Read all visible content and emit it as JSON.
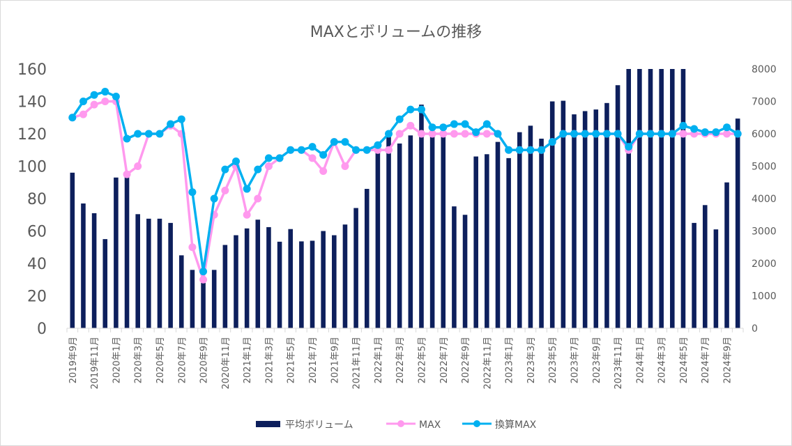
{
  "chart_data": {
    "type": "bar",
    "title": "MAXとボリュームの推移",
    "x": [
      "2019年9月",
      "2019年10月",
      "2019年11月",
      "2019年12月",
      "2020年1月",
      "2020年2月",
      "2020年3月",
      "2020年4月",
      "2020年5月",
      "2020年6月",
      "2020年7月",
      "2020年8月",
      "2020年9月",
      "2020年10月",
      "2020年11月",
      "2020年12月",
      "2021年1月",
      "2021年2月",
      "2021年3月",
      "2021年4月",
      "2021年5月",
      "2021年6月",
      "2021年7月",
      "2021年8月",
      "2021年9月",
      "2021年10月",
      "2021年11月",
      "2021年12月",
      "2022年1月",
      "2022年2月",
      "2022年3月",
      "2022年4月",
      "2022年5月",
      "2022年6月",
      "2022年7月",
      "2022年8月",
      "2022年9月",
      "2022年10月",
      "2022年11月",
      "2022年12月",
      "2023年1月",
      "2023年2月",
      "2023年3月",
      "2023年4月",
      "2023年5月",
      "2023年6月",
      "2023年7月",
      "2023年8月",
      "2023年9月",
      "2023年10月",
      "2023年11月",
      "2023年12月",
      "2024年1月",
      "2024年2月",
      "2024年3月",
      "2024年4月",
      "2024年5月",
      "2024年6月",
      "2024年7月",
      "2024年8月",
      "2024年9月",
      "2024年10月"
    ],
    "x_tick_labels": [
      "2019年9月",
      "2019年11月",
      "2020年1月",
      "2020年3月",
      "2020年5月",
      "2020年7月",
      "2020年9月",
      "2020年11月",
      "2021年1月",
      "2021年3月",
      "2021年5月",
      "2021年7月",
      "2021年9月",
      "2021年11月",
      "2022年1月",
      "2022年3月",
      "2022年5月",
      "2022年7月",
      "2022年9月",
      "2022年11月",
      "2023年1月",
      "2023年3月",
      "2023年5月",
      "2023年7月",
      "2023年9月",
      "2023年11月",
      "2024年1月",
      "2024年3月",
      "2024年5月",
      "2024年7月",
      "2024年9月"
    ],
    "y_left": {
      "ylim": [
        0,
        160
      ],
      "ticks": [
        "0",
        "20",
        "40",
        "60",
        "80",
        "100",
        "120",
        "140",
        "160"
      ]
    },
    "y_right": {
      "ylim": [
        0,
        8000
      ],
      "ticks": [
        "0",
        "1000",
        "2000",
        "3000",
        "4000",
        "5000",
        "6000",
        "7000",
        "8000"
      ]
    },
    "series": [
      {
        "name": "平均ボリューム",
        "type": "bar",
        "axis": "right",
        "color": "#0d1f5c",
        "values": [
          4800,
          3850,
          3550,
          2750,
          4650,
          4700,
          3520,
          3380,
          3380,
          3250,
          2250,
          1800,
          1400,
          1800,
          2570,
          2870,
          3080,
          3350,
          3120,
          2670,
          3060,
          2680,
          2700,
          3000,
          2870,
          3200,
          3710,
          4300,
          5500,
          5900,
          5700,
          5950,
          6900,
          6100,
          6050,
          3760,
          3500,
          5300,
          5370,
          5750,
          5250,
          6050,
          6250,
          5850,
          7000,
          7020,
          6600,
          6700,
          6750,
          6950,
          7500,
          8000,
          8000,
          8000,
          8000,
          8000,
          8000,
          3250,
          3800,
          3050,
          4500,
          6470
        ]
      },
      {
        "name": "MAX",
        "type": "line",
        "axis": "left",
        "color": "#ff99ee",
        "values": [
          130,
          132,
          138,
          140,
          140,
          95,
          100,
          120,
          120,
          125,
          120,
          50,
          30,
          70,
          85,
          100,
          70,
          80,
          100,
          105,
          110,
          110,
          105,
          97,
          115,
          100,
          110,
          110,
          110,
          110,
          120,
          125,
          120,
          120,
          120,
          120,
          120,
          120,
          120,
          120,
          110,
          110,
          110,
          110,
          115,
          120,
          120,
          120,
          120,
          120,
          120,
          110,
          120,
          120,
          120,
          120,
          120,
          120,
          120,
          120,
          120,
          120
        ]
      },
      {
        "name": "換算MAX",
        "type": "line",
        "axis": "left",
        "color": "#00b0f0",
        "values": [
          130,
          140,
          144,
          146,
          143,
          117,
          120,
          120,
          120,
          126,
          129,
          84,
          35,
          80,
          98,
          103,
          86,
          98,
          105,
          105,
          110,
          110,
          112,
          107,
          115,
          115,
          110,
          110,
          113,
          120,
          129,
          135,
          135,
          124,
          124,
          126,
          126,
          121,
          126,
          120,
          110,
          110,
          110,
          110,
          115,
          120,
          120,
          120,
          120,
          120,
          120,
          112,
          120,
          120,
          120,
          120,
          125,
          123,
          121,
          121,
          124,
          120
        ]
      }
    ],
    "legend": "bottom",
    "grid": false
  }
}
